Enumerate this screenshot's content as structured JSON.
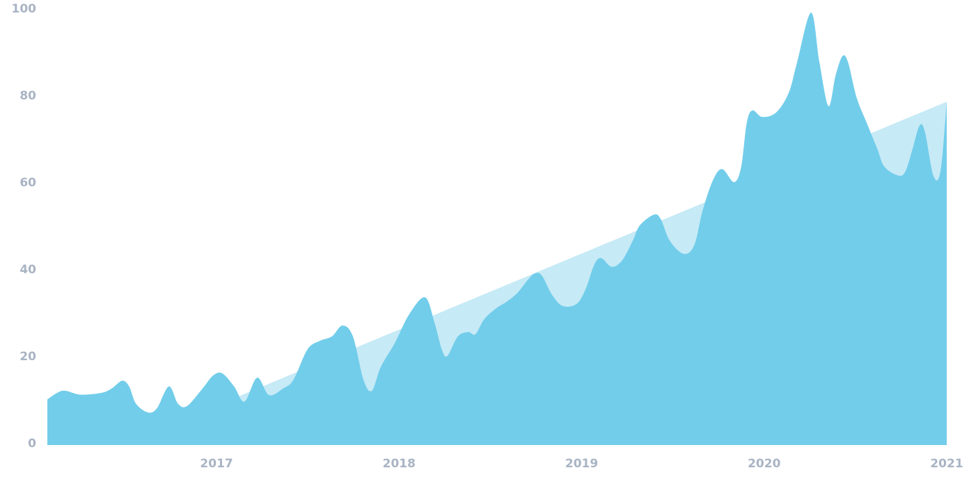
{
  "chart_data": {
    "type": "area",
    "series": [
      {
        "color": "#c6eaf6",
        "x": [
          2016.48,
          2021.0
        ],
        "values": [
          0,
          79
        ]
      },
      {
        "color": "#72cdea",
        "x": [
          2016.073,
          2016.157,
          2016.253,
          2016.368,
          2016.425,
          2016.483,
          2016.521,
          2016.559,
          2016.625,
          2016.674,
          2016.739,
          2016.789,
          2016.839,
          2016.923,
          2016.981,
          2017.031,
          2017.096,
          2017.153,
          2017.222,
          2017.287,
          2017.364,
          2017.421,
          2017.498,
          2017.567,
          2017.632,
          2017.69,
          2017.747,
          2017.805,
          2017.851,
          2017.9,
          2017.977,
          2018.054,
          2018.142,
          2018.195,
          2018.234,
          2018.264,
          2018.322,
          2018.379,
          2018.418,
          2018.467,
          2018.533,
          2018.59,
          2018.648,
          2018.705,
          2018.743,
          2018.782,
          2018.839,
          2018.897,
          2018.973,
          2019.023,
          2019.069,
          2019.107,
          2019.165,
          2019.222,
          2019.28,
          2019.318,
          2019.395,
          2019.433,
          2019.483,
          2019.559,
          2019.617,
          2019.663,
          2019.72,
          2019.77,
          2019.835,
          2019.874,
          2019.904,
          2019.935,
          2019.989,
          2020.065,
          2020.134,
          2020.18,
          2020.257,
          2020.303,
          2020.352,
          2020.391,
          2020.429,
          2020.46,
          2020.506,
          2020.563,
          2020.621,
          2020.659,
          2020.736,
          2020.774,
          2020.812,
          2020.851,
          2020.881,
          2020.927,
          2020.966,
          2021.0
        ],
        "values": [
          10.5,
          12.5,
          11.6,
          12,
          13,
          14.8,
          13.5,
          9.5,
          7.5,
          8.5,
          13.5,
          9.5,
          9,
          13,
          16,
          16.5,
          13.5,
          10,
          15.5,
          11.5,
          13,
          15,
          22,
          24,
          25,
          27.5,
          25,
          15,
          12.5,
          18,
          23.5,
          30,
          34,
          28,
          22,
          20.5,
          25,
          26,
          25.5,
          29,
          31.5,
          33,
          35,
          38,
          39.5,
          39,
          34.5,
          32,
          32.5,
          36,
          41.5,
          43,
          41,
          42.5,
          47,
          50.5,
          53,
          52,
          47,
          44,
          46,
          54,
          61,
          63.5,
          60.5,
          64,
          74,
          77,
          75.5,
          76.5,
          81,
          88,
          99.5,
          88,
          78,
          85,
          89.5,
          88,
          80,
          74,
          68,
          64,
          62,
          63,
          68,
          73.5,
          72,
          62,
          63,
          79
        ]
      }
    ],
    "xlim": [
      2016.073,
      2021.0
    ],
    "xticks": [
      2017,
      2018,
      2019,
      2020,
      2021
    ],
    "ylim": [
      0,
      100
    ],
    "yticks": [
      0,
      20,
      40,
      60,
      80,
      100
    ]
  }
}
